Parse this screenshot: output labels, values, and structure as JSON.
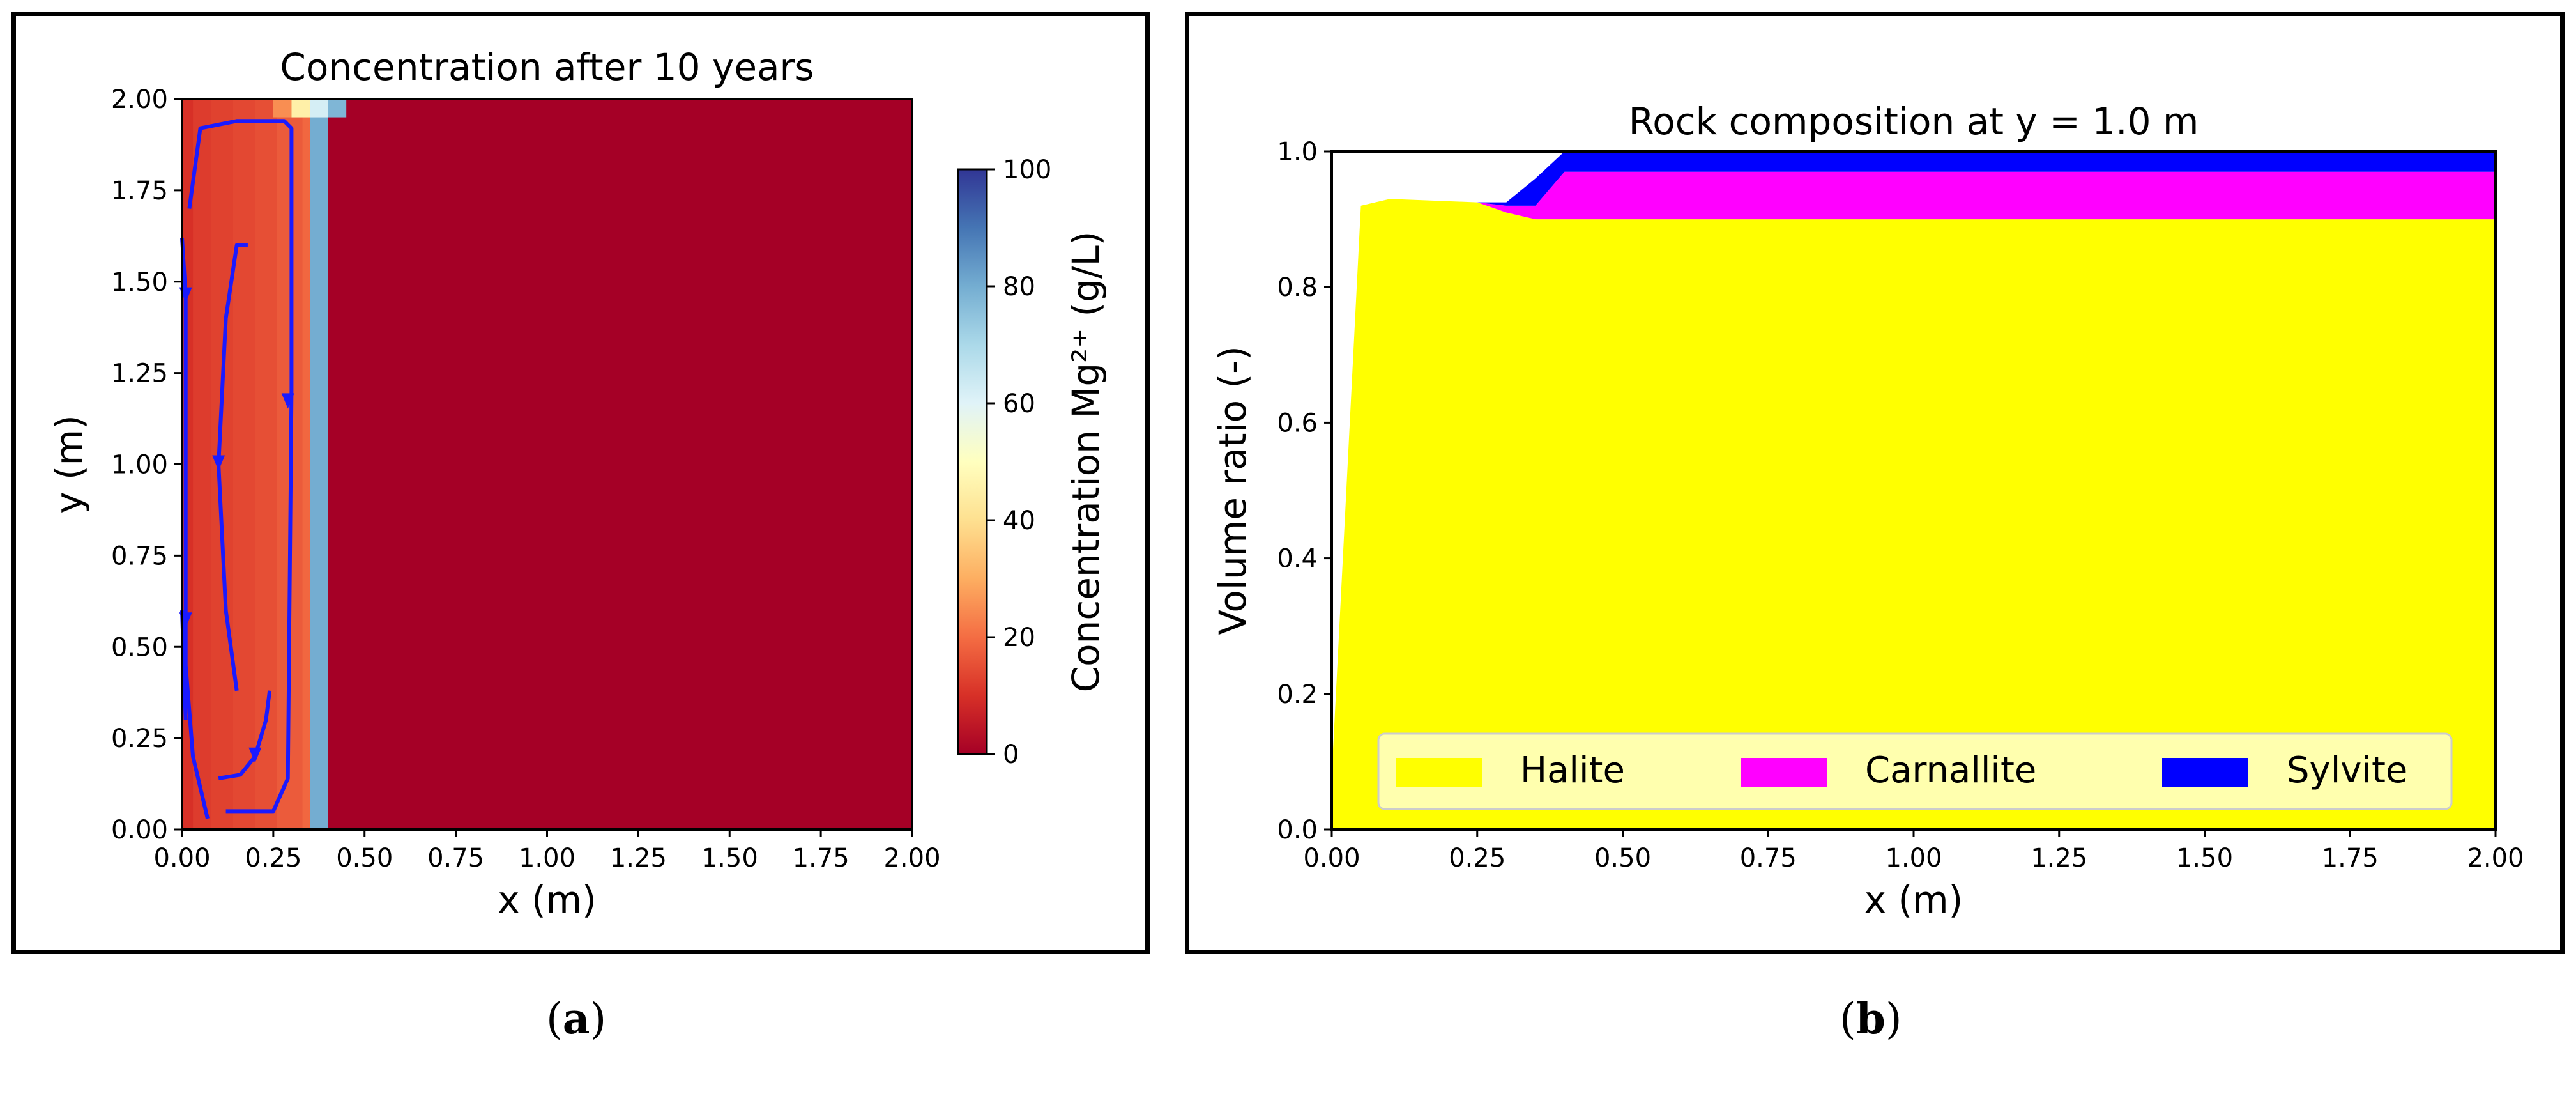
{
  "chart_data": [
    {
      "type": "heatmap",
      "title": "Concentration after 10 years",
      "xlabel": "x (m)",
      "ylabel": "y (m)",
      "xlim": [
        0,
        2
      ],
      "ylim": [
        0,
        2
      ],
      "xticks": [
        "0.00",
        "0.25",
        "0.50",
        "0.75",
        "1.00",
        "1.25",
        "1.50",
        "1.75",
        "2.00"
      ],
      "yticks": [
        "0.00",
        "0.25",
        "0.50",
        "0.75",
        "1.00",
        "1.25",
        "1.50",
        "1.75",
        "2.00"
      ],
      "colorbar": {
        "label": "Concentration Mg²⁺ (g/L)",
        "range": [
          0,
          100
        ],
        "ticks": [
          "0",
          "20",
          "40",
          "60",
          "80",
          "100"
        ],
        "colormap": "RdYlBu"
      },
      "columns": [
        {
          "x0": 0.0,
          "x1": 0.03,
          "value": 10
        },
        {
          "x0": 0.03,
          "x1": 0.08,
          "value": 12
        },
        {
          "x0": 0.08,
          "x1": 0.14,
          "value": 13
        },
        {
          "x0": 0.14,
          "x1": 0.2,
          "value": 14
        },
        {
          "x0": 0.2,
          "x1": 0.26,
          "value": 15
        },
        {
          "x0": 0.26,
          "x1": 0.33,
          "value": 17
        },
        {
          "x0": 0.33,
          "x1": 0.35,
          "value": 19
        },
        {
          "x0": 0.35,
          "x1": 0.4,
          "value": 80
        },
        {
          "x0": 0.4,
          "x1": 2.0,
          "value": 0
        }
      ],
      "top_cells": [
        {
          "x0": 0.25,
          "x1": 0.3,
          "value": 25
        },
        {
          "x0": 0.3,
          "x1": 0.35,
          "value": 45
        },
        {
          "x0": 0.35,
          "x1": 0.4,
          "value": 62
        },
        {
          "x0": 0.4,
          "x1": 0.45,
          "value": 78
        }
      ],
      "streamlines": [
        {
          "points": [
            [
              0.02,
              1.7
            ],
            [
              0.05,
              1.92
            ],
            [
              0.15,
              1.94
            ],
            [
              0.28,
              1.94
            ],
            [
              0.3,
              1.92
            ],
            [
              0.3,
              1.2
            ],
            [
              0.29,
              0.14
            ],
            [
              0.25,
              0.05
            ],
            [
              0.12,
              0.05
            ]
          ],
          "arrows": [
            [
              0.29,
              1.17
            ]
          ]
        },
        {
          "points": [
            [
              0.0,
              1.62
            ],
            [
              0.01,
              1.46
            ],
            [
              0.01,
              0.45
            ],
            [
              0.03,
              0.2
            ],
            [
              0.07,
              0.03
            ]
          ],
          "arrows": [
            [
              0.01,
              1.46
            ]
          ]
        },
        {
          "points": [
            [
              0.15,
              0.38
            ],
            [
              0.12,
              0.6
            ],
            [
              0.1,
              1.0
            ],
            [
              0.12,
              1.4
            ],
            [
              0.15,
              1.6
            ],
            [
              0.18,
              1.6
            ]
          ],
          "arrows": [
            [
              0.1,
              1.0
            ]
          ]
        },
        {
          "points": [
            [
              0.1,
              0.14
            ],
            [
              0.16,
              0.15
            ],
            [
              0.2,
              0.2
            ],
            [
              0.23,
              0.3
            ],
            [
              0.24,
              0.38
            ]
          ],
          "arrows": [
            [
              0.2,
              0.2
            ]
          ]
        },
        {
          "points": [
            [
              0.0,
              0.6
            ],
            [
              0.01,
              0.3
            ]
          ],
          "arrows": [
            [
              0.01,
              0.57
            ]
          ]
        }
      ]
    },
    {
      "type": "area",
      "title": "Rock composition at y = 1.0 m",
      "xlabel": "x (m)",
      "ylabel": "Volume ratio (-)",
      "xlim": [
        0,
        2
      ],
      "ylim": [
        0,
        1
      ],
      "xticks": [
        "0.00",
        "0.25",
        "0.50",
        "0.75",
        "1.00",
        "1.25",
        "1.50",
        "1.75",
        "2.00"
      ],
      "yticks": [
        "0.0",
        "0.2",
        "0.4",
        "0.6",
        "0.8",
        "1.0"
      ],
      "legend_position": "bottom",
      "series": [
        {
          "name": "Halite",
          "color": "#ffff00",
          "x": [
            0.0,
            0.05,
            0.1,
            0.25,
            0.3,
            0.35,
            0.4,
            2.0
          ],
          "y": [
            0.08,
            0.92,
            0.93,
            0.925,
            0.91,
            0.9,
            0.9,
            0.9
          ]
        },
        {
          "name": "Carnallite",
          "color": "#ff00ff",
          "x": [
            0.0,
            0.05,
            0.1,
            0.25,
            0.3,
            0.35,
            0.4,
            2.0
          ],
          "y": [
            0.0,
            0.0,
            0.0,
            0.0,
            0.01,
            0.02,
            0.07,
            0.07
          ]
        },
        {
          "name": "Sylvite",
          "color": "#0000ff",
          "x": [
            0.0,
            0.05,
            0.1,
            0.25,
            0.3,
            0.35,
            0.4,
            2.0
          ],
          "y": [
            0.0,
            0.0,
            0.0,
            0.0,
            0.005,
            0.04,
            0.03,
            0.03
          ]
        }
      ]
    }
  ],
  "captions": {
    "a": "a",
    "b": "b"
  }
}
